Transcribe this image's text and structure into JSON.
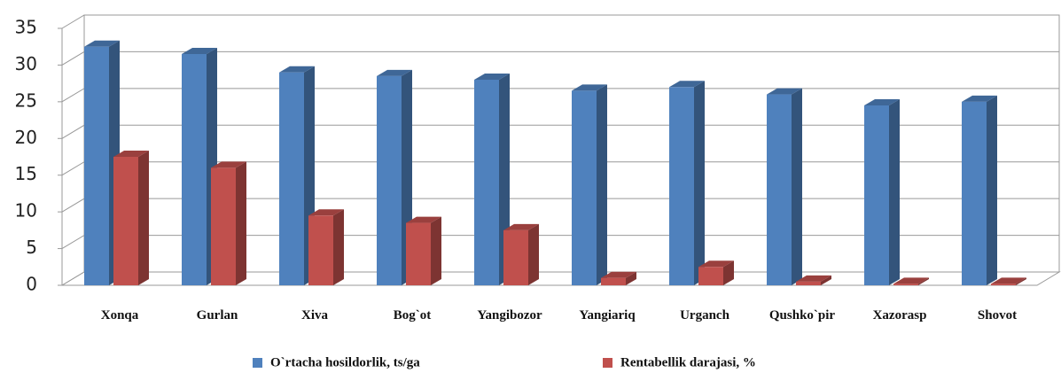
{
  "chart_data": {
    "type": "bar3d",
    "categories": [
      "Xonqa",
      "Gurlan",
      "Xiva",
      "Bog`ot",
      "Yangibozor",
      "Yangiariq",
      "Urganch",
      "Qushko`pir",
      "Xazorasp",
      "Shovot"
    ],
    "series": [
      {
        "name": "O`rtacha hosildorlik, ts/ga",
        "color": "#4f81bd",
        "values": [
          32.5,
          31.5,
          29,
          28.5,
          28,
          26.5,
          27,
          26,
          24.5,
          25
        ]
      },
      {
        "name": "Rentabellik darajasi, %",
        "color": "#c0504d",
        "values": [
          17.5,
          16,
          9.5,
          8.5,
          7.5,
          1,
          2.5,
          0.5,
          0.2,
          0.2
        ]
      }
    ],
    "ylim": [
      0,
      35
    ],
    "yticks": [
      0,
      5,
      10,
      15,
      20,
      25,
      30,
      35
    ],
    "grid": true,
    "legend": "bottom"
  }
}
